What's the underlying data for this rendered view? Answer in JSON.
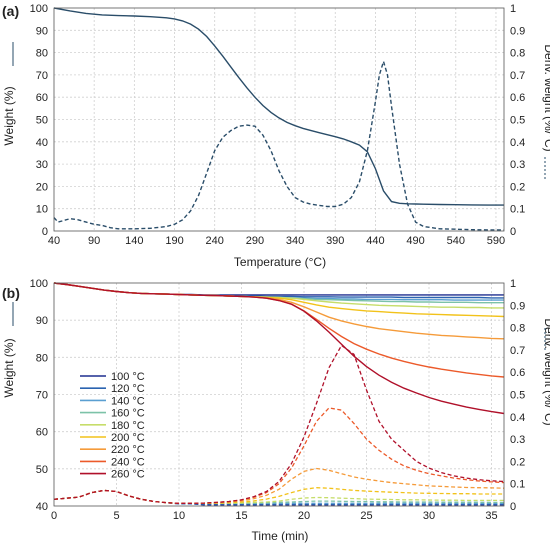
{
  "chart_data": [
    {
      "type": "line",
      "panel_label": "(a)",
      "xlabel": "Temperature (°C)",
      "ylabel": "Weight (%)",
      "y2label": "Deriv. weight (%/°C)",
      "xlim": [
        40,
        600
      ],
      "ylim": [
        0,
        100
      ],
      "y2lim": [
        0,
        1
      ],
      "xticks": [
        40,
        90,
        140,
        190,
        240,
        290,
        340,
        390,
        440,
        490,
        540,
        590
      ],
      "yticks": [
        0,
        10,
        20,
        30,
        40,
        50,
        60,
        70,
        80,
        90,
        100
      ],
      "y2ticks": [
        0,
        0.1,
        0.2,
        0.3,
        0.4,
        0.5,
        0.6,
        0.7,
        0.8,
        0.9,
        1
      ],
      "grid": true,
      "legend": "none",
      "series": [
        {
          "axis": "left",
          "style": "solid",
          "color": "#2a4d69",
          "x": [
            40,
            60,
            80,
            100,
            120,
            140,
            160,
            180,
            190,
            200,
            210,
            220,
            230,
            240,
            250,
            260,
            270,
            280,
            290,
            300,
            310,
            320,
            330,
            340,
            350,
            360,
            370,
            380,
            390,
            400,
            410,
            420,
            430,
            440,
            450,
            460,
            470,
            480,
            490,
            500,
            520,
            540,
            560,
            580,
            600
          ],
          "values": [
            100,
            98.7,
            97.6,
            96.9,
            96.6,
            96.4,
            96.1,
            95.6,
            95.1,
            94.2,
            92.8,
            90.5,
            87.2,
            83,
            78.4,
            73.6,
            68.8,
            64.2,
            60,
            56.3,
            53.2,
            50.7,
            48.7,
            47.2,
            46,
            45,
            44.1,
            43.2,
            42.3,
            41.3,
            40,
            38.5,
            35.5,
            28,
            18,
            13.2,
            12.4,
            12.2,
            12.1,
            12,
            11.9,
            11.8,
            11.7,
            11.6,
            11.6
          ]
        },
        {
          "axis": "right",
          "style": "dashed",
          "color": "#2a4d69",
          "x": [
            40,
            45,
            50,
            60,
            70,
            80,
            90,
            100,
            110,
            120,
            140,
            160,
            180,
            190,
            200,
            210,
            220,
            230,
            240,
            250,
            260,
            270,
            280,
            290,
            300,
            310,
            320,
            330,
            340,
            350,
            360,
            370,
            380,
            390,
            400,
            410,
            420,
            430,
            440,
            445,
            450,
            455,
            460,
            470,
            480,
            490,
            500,
            520,
            540,
            560,
            580,
            600
          ],
          "values": [
            0.06,
            0.04,
            0.045,
            0.055,
            0.05,
            0.04,
            0.03,
            0.025,
            0.015,
            0.01,
            0.01,
            0.012,
            0.02,
            0.03,
            0.05,
            0.09,
            0.16,
            0.26,
            0.36,
            0.42,
            0.45,
            0.47,
            0.475,
            0.47,
            0.43,
            0.36,
            0.27,
            0.2,
            0.15,
            0.13,
            0.12,
            0.115,
            0.11,
            0.11,
            0.12,
            0.15,
            0.22,
            0.36,
            0.58,
            0.7,
            0.76,
            0.7,
            0.56,
            0.3,
            0.12,
            0.04,
            0.02,
            0.01,
            0.008,
            0.006,
            0.005,
            0.005
          ]
        }
      ]
    },
    {
      "type": "line",
      "panel_label": "(b)",
      "xlabel": "Time (min)",
      "ylabel": "Weight (%)",
      "y2label": "Deriv. weight (%/°C)",
      "xlim": [
        0,
        36
      ],
      "ylim": [
        40,
        100
      ],
      "y2lim": [
        0,
        1
      ],
      "xticks": [
        0,
        5,
        10,
        15,
        20,
        25,
        30,
        35
      ],
      "yticks": [
        40,
        50,
        60,
        70,
        80,
        90,
        100
      ],
      "y2ticks": [
        0,
        0.1,
        0.2,
        0.3,
        0.4,
        0.5,
        0.6,
        0.7,
        0.8,
        0.9,
        1
      ],
      "grid": true,
      "legend": "left",
      "x": [
        0,
        1,
        2,
        3,
        4,
        5,
        6,
        7,
        8,
        9,
        10,
        11,
        12,
        13,
        14,
        15,
        16,
        17,
        18,
        19,
        20,
        21,
        22,
        23,
        24,
        25,
        26,
        27,
        28,
        29,
        30,
        31,
        32,
        33,
        34,
        35,
        36
      ],
      "series": [
        {
          "name": "100 °C",
          "color": "#1f2f8f",
          "weight": [
            100,
            99.6,
            99.1,
            98.6,
            98.1,
            97.7,
            97.4,
            97.2,
            97.1,
            97,
            96.9,
            96.9,
            96.8,
            96.8,
            96.8,
            96.8,
            96.8,
            96.8,
            96.8,
            96.8,
            96.8,
            96.8,
            96.8,
            96.8,
            96.8,
            96.8,
            96.8,
            96.8,
            96.8,
            96.8,
            96.8,
            96.8,
            96.8,
            96.8,
            96.8,
            96.8,
            96.8
          ],
          "deriv": [
            0.03,
            0.035,
            0.04,
            0.06,
            0.07,
            0.065,
            0.045,
            0.03,
            0.02,
            0.015,
            0.01,
            0.01,
            0.005,
            0.005,
            0.005,
            0.005,
            0.005,
            0.005,
            0.005,
            0.005,
            0.005,
            0.005,
            0.005,
            0.005,
            0.005,
            0.005,
            0.005,
            0.005,
            0.005,
            0.005,
            0.005,
            0.005,
            0.005,
            0.005,
            0.005,
            0.005,
            0.005
          ]
        },
        {
          "name": "120 °C",
          "color": "#2b63b0",
          "weight": [
            100,
            99.6,
            99.1,
            98.6,
            98.1,
            97.7,
            97.4,
            97.2,
            97.1,
            97,
            96.9,
            96.8,
            96.7,
            96.6,
            96.6,
            96.5,
            96.5,
            96.4,
            96.4,
            96.4,
            96.3,
            96.3,
            96.3,
            96.2,
            96.2,
            96.2,
            96.2,
            96.2,
            96.1,
            96.1,
            96.1,
            96.1,
            96.1,
            96.1,
            96.1,
            96,
            96
          ],
          "deriv": [
            0.03,
            0.035,
            0.04,
            0.06,
            0.07,
            0.065,
            0.045,
            0.03,
            0.02,
            0.015,
            0.01,
            0.01,
            0.008,
            0.008,
            0.008,
            0.008,
            0.008,
            0.008,
            0.008,
            0.008,
            0.008,
            0.008,
            0.008,
            0.008,
            0.008,
            0.008,
            0.008,
            0.008,
            0.008,
            0.008,
            0.008,
            0.008,
            0.008,
            0.008,
            0.008,
            0.008,
            0.008
          ]
        },
        {
          "name": "140 °C",
          "color": "#5a9fd1",
          "weight": [
            100,
            99.6,
            99.1,
            98.6,
            98.1,
            97.7,
            97.4,
            97.2,
            97.1,
            97,
            96.9,
            96.8,
            96.7,
            96.6,
            96.5,
            96.4,
            96.3,
            96.2,
            96.1,
            96,
            95.9,
            95.8,
            95.8,
            95.7,
            95.7,
            95.6,
            95.6,
            95.6,
            95.5,
            95.5,
            95.5,
            95.5,
            95.4,
            95.4,
            95.4,
            95.4,
            95.4
          ],
          "deriv": [
            0.03,
            0.035,
            0.04,
            0.06,
            0.07,
            0.065,
            0.045,
            0.03,
            0.02,
            0.015,
            0.012,
            0.012,
            0.012,
            0.012,
            0.012,
            0.012,
            0.012,
            0.012,
            0.012,
            0.012,
            0.012,
            0.012,
            0.012,
            0.012,
            0.012,
            0.012,
            0.012,
            0.012,
            0.012,
            0.012,
            0.012,
            0.012,
            0.012,
            0.012,
            0.012,
            0.012,
            0.012
          ]
        },
        {
          "name": "160 °C",
          "color": "#7cc2a8",
          "weight": [
            100,
            99.6,
            99.1,
            98.6,
            98.1,
            97.7,
            97.4,
            97.2,
            97.1,
            97,
            96.9,
            96.8,
            96.7,
            96.6,
            96.5,
            96.4,
            96.3,
            96.2,
            96.1,
            96,
            95.8,
            95.6,
            95.5,
            95.4,
            95.3,
            95.2,
            95.1,
            95,
            95,
            94.9,
            94.9,
            94.8,
            94.8,
            94.8,
            94.7,
            94.7,
            94.7
          ],
          "deriv": [
            0.03,
            0.035,
            0.04,
            0.06,
            0.07,
            0.065,
            0.045,
            0.03,
            0.02,
            0.015,
            0.012,
            0.012,
            0.012,
            0.012,
            0.012,
            0.012,
            0.013,
            0.014,
            0.016,
            0.018,
            0.02,
            0.022,
            0.022,
            0.021,
            0.02,
            0.02,
            0.019,
            0.019,
            0.018,
            0.018,
            0.018,
            0.017,
            0.017,
            0.017,
            0.017,
            0.016,
            0.016
          ]
        },
        {
          "name": "180 °C",
          "color": "#c6dd6a",
          "weight": [
            100,
            99.6,
            99.1,
            98.6,
            98.1,
            97.7,
            97.4,
            97.2,
            97.1,
            97,
            96.9,
            96.8,
            96.7,
            96.6,
            96.5,
            96.4,
            96.3,
            96.2,
            96.1,
            95.9,
            95.6,
            95.2,
            94.9,
            94.6,
            94.4,
            94.2,
            94,
            93.9,
            93.8,
            93.7,
            93.6,
            93.5,
            93.5,
            93.4,
            93.4,
            93.3,
            93.3
          ],
          "deriv": [
            0.03,
            0.035,
            0.04,
            0.06,
            0.07,
            0.065,
            0.045,
            0.03,
            0.02,
            0.015,
            0.012,
            0.012,
            0.012,
            0.012,
            0.013,
            0.014,
            0.016,
            0.018,
            0.022,
            0.03,
            0.036,
            0.038,
            0.037,
            0.035,
            0.033,
            0.031,
            0.03,
            0.029,
            0.028,
            0.028,
            0.027,
            0.026,
            0.026,
            0.025,
            0.025,
            0.025,
            0.025
          ]
        },
        {
          "name": "200 °C",
          "color": "#f2c21a",
          "weight": [
            100,
            99.6,
            99.1,
            98.6,
            98.1,
            97.7,
            97.4,
            97.2,
            97.1,
            97,
            96.9,
            96.8,
            96.7,
            96.6,
            96.5,
            96.4,
            96.3,
            96.1,
            95.9,
            95.5,
            94.8,
            94.1,
            93.5,
            93.1,
            92.8,
            92.5,
            92.3,
            92.1,
            91.9,
            91.7,
            91.6,
            91.5,
            91.4,
            91.3,
            91.2,
            91.1,
            91
          ],
          "deriv": [
            0.03,
            0.035,
            0.04,
            0.06,
            0.07,
            0.065,
            0.045,
            0.03,
            0.02,
            0.015,
            0.012,
            0.012,
            0.012,
            0.013,
            0.015,
            0.018,
            0.023,
            0.031,
            0.043,
            0.06,
            0.075,
            0.082,
            0.08,
            0.075,
            0.07,
            0.067,
            0.064,
            0.062,
            0.06,
            0.058,
            0.057,
            0.056,
            0.055,
            0.055,
            0.054,
            0.054,
            0.054
          ]
        },
        {
          "name": "220 °C",
          "color": "#f59b3a",
          "weight": [
            100,
            99.6,
            99.1,
            98.6,
            98.1,
            97.7,
            97.4,
            97.2,
            97.1,
            97,
            96.9,
            96.8,
            96.7,
            96.6,
            96.5,
            96.4,
            96.2,
            96,
            95.6,
            94.8,
            93.6,
            92.2,
            90.8,
            89.8,
            89,
            88.3,
            87.7,
            87.3,
            86.9,
            86.5,
            86.2,
            85.9,
            85.7,
            85.5,
            85.3,
            85.1,
            85
          ],
          "deriv": [
            0.03,
            0.035,
            0.04,
            0.06,
            0.07,
            0.065,
            0.045,
            0.03,
            0.02,
            0.015,
            0.012,
            0.012,
            0.013,
            0.015,
            0.018,
            0.023,
            0.033,
            0.048,
            0.075,
            0.12,
            0.155,
            0.168,
            0.16,
            0.145,
            0.13,
            0.12,
            0.112,
            0.105,
            0.1,
            0.095,
            0.09,
            0.088,
            0.085,
            0.083,
            0.082,
            0.081,
            0.08
          ]
        },
        {
          "name": "240 °C",
          "color": "#ec5a2a",
          "weight": [
            100,
            99.6,
            99.1,
            98.6,
            98.1,
            97.7,
            97.4,
            97.2,
            97.1,
            97,
            96.9,
            96.8,
            96.7,
            96.6,
            96.5,
            96.4,
            96.2,
            95.9,
            95.3,
            94.3,
            92.5,
            90.2,
            87.8,
            85.6,
            83.7,
            82.2,
            80.9,
            79.8,
            78.9,
            78.1,
            77.4,
            76.8,
            76.3,
            75.8,
            75.4,
            75,
            74.7
          ],
          "deriv": [
            0.03,
            0.035,
            0.04,
            0.06,
            0.07,
            0.065,
            0.045,
            0.03,
            0.02,
            0.015,
            0.012,
            0.012,
            0.013,
            0.016,
            0.02,
            0.027,
            0.04,
            0.06,
            0.1,
            0.17,
            0.27,
            0.38,
            0.44,
            0.43,
            0.37,
            0.3,
            0.25,
            0.21,
            0.18,
            0.16,
            0.145,
            0.135,
            0.125,
            0.118,
            0.112,
            0.108,
            0.105
          ]
        },
        {
          "name": "260 °C",
          "color": "#b0102a",
          "weight": [
            100,
            99.6,
            99.1,
            98.6,
            98.1,
            97.7,
            97.4,
            97.2,
            97.1,
            97,
            96.9,
            96.8,
            96.7,
            96.6,
            96.5,
            96.4,
            96.2,
            95.9,
            95.3,
            94.3,
            92.4,
            89.8,
            86.8,
            83.5,
            80.3,
            77.5,
            75.2,
            73.3,
            71.7,
            70.4,
            69.2,
            68.2,
            67.4,
            66.6,
            66,
            65.4,
            64.9
          ],
          "deriv": [
            0.03,
            0.035,
            0.04,
            0.06,
            0.07,
            0.065,
            0.045,
            0.03,
            0.02,
            0.015,
            0.012,
            0.012,
            0.013,
            0.016,
            0.02,
            0.028,
            0.042,
            0.065,
            0.11,
            0.19,
            0.31,
            0.46,
            0.62,
            0.72,
            0.68,
            0.52,
            0.38,
            0.3,
            0.25,
            0.2,
            0.17,
            0.15,
            0.135,
            0.125,
            0.118,
            0.113,
            0.11
          ]
        }
      ]
    }
  ]
}
